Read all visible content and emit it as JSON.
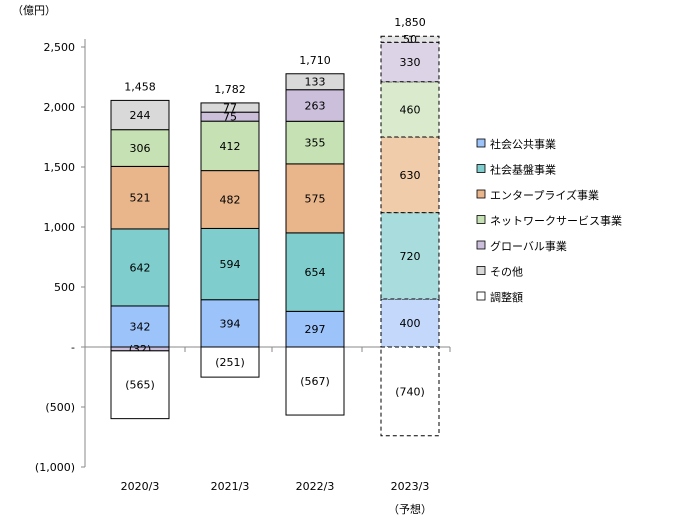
{
  "chart_data": {
    "type": "bar",
    "stacked": true,
    "unit_label": "（億円）",
    "categories": [
      "2020/3",
      "2021/3",
      "2022/3",
      "2023/3"
    ],
    "category_sublabels": [
      "",
      "",
      "",
      "（予想）"
    ],
    "forecast": [
      false,
      false,
      false,
      true
    ],
    "totals": [
      "1,458",
      "1,782",
      "1,710",
      "1,850"
    ],
    "ylim": [
      -1000,
      2500
    ],
    "yticks": [
      -1000,
      -500,
      0,
      500,
      1000,
      1500,
      2000,
      2500
    ],
    "ytick_labels": [
      "(1,000)",
      "(500)",
      "-",
      "500",
      "1,000",
      "1,500",
      "2,000",
      "2,500"
    ],
    "legend_position": "right",
    "series": [
      {
        "name": "社会公共事業",
        "color": "#9dc3fb",
        "forecast_color": "#c3d8fb",
        "values": [
          342,
          394,
          297,
          400
        ]
      },
      {
        "name": "社会基盤事業",
        "color": "#7fcdcd",
        "forecast_color": "#a9dcdc",
        "values": [
          642,
          594,
          654,
          720
        ]
      },
      {
        "name": "エンタープライズ事業",
        "color": "#e9b68c",
        "forecast_color": "#f1ccab",
        "values": [
          521,
          482,
          575,
          630
        ]
      },
      {
        "name": "ネットワークサービス事業",
        "color": "#c6e2b4",
        "forecast_color": "#d9ebcc",
        "values": [
          306,
          412,
          355,
          460
        ]
      },
      {
        "name": "グローバル事業",
        "color": "#cbbfdb",
        "forecast_color": "#dcd3e6",
        "values": [
          -32,
          75,
          263,
          330
        ]
      },
      {
        "name": "その他",
        "color": "#d9d9d9",
        "forecast_color": "#e4e4e4",
        "values": [
          244,
          77,
          133,
          50
        ]
      },
      {
        "name": "調整額",
        "color": "#ffffff",
        "forecast_color": "#ffffff",
        "values": [
          -565,
          -251,
          -567,
          -740
        ]
      }
    ],
    "value_labels": [
      [
        "342",
        "394",
        "297",
        "400"
      ],
      [
        "642",
        "594",
        "654",
        "720"
      ],
      [
        "521",
        "482",
        "575",
        "630"
      ],
      [
        "306",
        "412",
        "355",
        "460"
      ],
      [
        "(32)",
        "75",
        "263",
        "330"
      ],
      [
        "244",
        "77",
        "133",
        "50"
      ],
      [
        "(565)",
        "(251)",
        "(567)",
        "(740)"
      ]
    ]
  }
}
